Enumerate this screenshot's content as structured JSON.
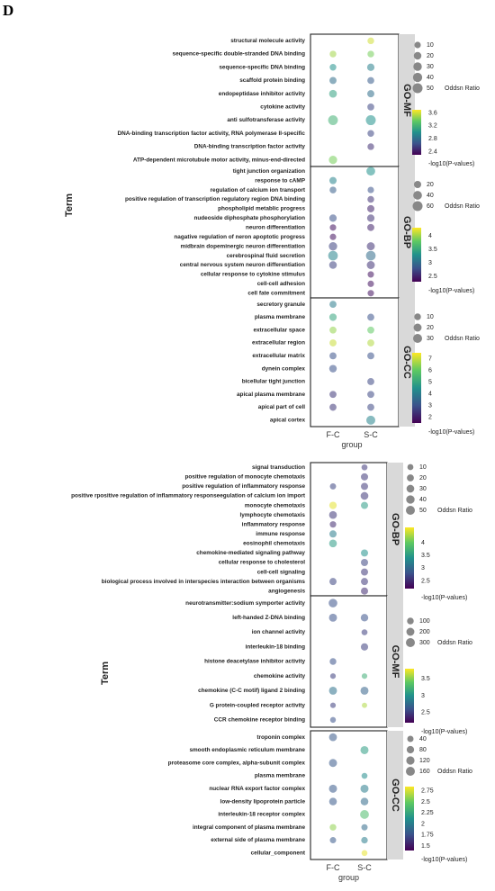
{
  "figure_letter": "D",
  "groups": [
    "F-C",
    "S-C"
  ],
  "xlabel": "group",
  "ylabel": "Term",
  "size_legend_title": "Oddsn Ratio",
  "color_legend_title": "-log10(P-values)",
  "chart_data": [
    {
      "type": "scatter",
      "panel": "GO-MF",
      "terms": [
        "structural molecule activity",
        "sequence-specific double-stranded DNA binding",
        "sequence-specific DNA binding",
        "scaffold protein binding",
        "endopeptidase inhibitor activity",
        "cytokine activity",
        "anti sulfotransferase activity",
        "DNA-binding transcription factor activity, RNA polymerase II-specific",
        "DNA-binding transcription factor activity",
        "ATP-dependent microtubule motor activity, minus-end-directed"
      ],
      "points": [
        {
          "term": 0,
          "group": 1,
          "size": 12,
          "color": 3.6
        },
        {
          "term": 1,
          "group": 0,
          "size": 12,
          "color": 3.5
        },
        {
          "term": 1,
          "group": 1,
          "size": 12,
          "color": 3.4
        },
        {
          "term": 2,
          "group": 0,
          "size": 12,
          "color": 3.0
        },
        {
          "term": 2,
          "group": 1,
          "size": 18,
          "color": 2.9
        },
        {
          "term": 3,
          "group": 0,
          "size": 15,
          "color": 2.8
        },
        {
          "term": 3,
          "group": 1,
          "size": 14,
          "color": 2.7
        },
        {
          "term": 4,
          "group": 0,
          "size": 22,
          "color": 3.1
        },
        {
          "term": 4,
          "group": 1,
          "size": 16,
          "color": 2.8
        },
        {
          "term": 5,
          "group": 1,
          "size": 14,
          "color": 2.6
        },
        {
          "term": 6,
          "group": 0,
          "size": 48,
          "color": 3.2
        },
        {
          "term": 6,
          "group": 1,
          "size": 50,
          "color": 3.0
        },
        {
          "term": 7,
          "group": 1,
          "size": 12,
          "color": 2.6
        },
        {
          "term": 8,
          "group": 1,
          "size": 12,
          "color": 2.5
        },
        {
          "term": 9,
          "group": 0,
          "size": 28,
          "color": 3.4
        }
      ],
      "size_legend": [
        10,
        20,
        30,
        40,
        50
      ],
      "color_ticks": [
        3.6,
        3.2,
        2.8,
        2.4
      ],
      "color_range": [
        2.3,
        3.7
      ]
    },
    {
      "type": "scatter",
      "panel": "GO-BP",
      "terms": [
        "tight junction organization",
        "response to cAMP",
        "regulation of calcium ion transport",
        "positive regulation of transcription regulatory region DNA binding",
        "phospholipid metablic progress",
        "nudeoside diphosphate phosphorylation",
        "neuron differentiation",
        "nagative regulation of neron apoptotic progress",
        "midbrain dopeminergic neuron differentiation",
        "cerebrospinal fluid secretion",
        "central nervous system neuron differentiation",
        "cellular response to cytokine stimulus",
        "cell-cell adhesion",
        "cell fate commitment"
      ],
      "points": [
        {
          "term": 0,
          "group": 1,
          "size": 40,
          "color": 3.3
        },
        {
          "term": 1,
          "group": 0,
          "size": 20,
          "color": 3.2
        },
        {
          "term": 2,
          "group": 0,
          "size": 15,
          "color": 2.9
        },
        {
          "term": 2,
          "group": 1,
          "size": 12,
          "color": 2.8
        },
        {
          "term": 3,
          "group": 1,
          "size": 15,
          "color": 2.6
        },
        {
          "term": 4,
          "group": 1,
          "size": 20,
          "color": 2.5
        },
        {
          "term": 5,
          "group": 0,
          "size": 22,
          "color": 2.8
        },
        {
          "term": 5,
          "group": 1,
          "size": 22,
          "color": 2.6
        },
        {
          "term": 6,
          "group": 0,
          "size": 12,
          "color": 2.4
        },
        {
          "term": 6,
          "group": 1,
          "size": 18,
          "color": 2.5
        },
        {
          "term": 7,
          "group": 0,
          "size": 12,
          "color": 2.4
        },
        {
          "term": 8,
          "group": 0,
          "size": 35,
          "color": 2.7
        },
        {
          "term": 8,
          "group": 1,
          "size": 30,
          "color": 2.6
        },
        {
          "term": 9,
          "group": 0,
          "size": 55,
          "color": 3.2
        },
        {
          "term": 9,
          "group": 1,
          "size": 55,
          "color": 3.0
        },
        {
          "term": 10,
          "group": 0,
          "size": 25,
          "color": 2.7
        },
        {
          "term": 10,
          "group": 1,
          "size": 30,
          "color": 2.6
        },
        {
          "term": 11,
          "group": 1,
          "size": 12,
          "color": 2.4
        },
        {
          "term": 12,
          "group": 1,
          "size": 12,
          "color": 2.4
        },
        {
          "term": 13,
          "group": 1,
          "size": 12,
          "color": 2.4
        }
      ],
      "size_legend": [
        20,
        40,
        60
      ],
      "color_ticks": [
        4,
        3.5,
        3,
        2.5
      ],
      "color_range": [
        2.3,
        4.3
      ]
    },
    {
      "type": "scatter",
      "panel": "GO-CC",
      "terms": [
        "secretory granule",
        "plasma membrane",
        "extracellular space",
        "extracellular region",
        "extracellular matrix",
        "dynein complex",
        "bicellular tight junction",
        "apical plasma membrane",
        "apical part of cell",
        "apical cortex"
      ],
      "points": [
        {
          "term": 0,
          "group": 0,
          "size": 12,
          "color": 4.0
        },
        {
          "term": 1,
          "group": 0,
          "size": 15,
          "color": 5.0
        },
        {
          "term": 1,
          "group": 1,
          "size": 12,
          "color": 3.0
        },
        {
          "term": 2,
          "group": 0,
          "size": 12,
          "color": 6.5
        },
        {
          "term": 2,
          "group": 1,
          "size": 12,
          "color": 6.0
        },
        {
          "term": 3,
          "group": 0,
          "size": 12,
          "color": 7.0
        },
        {
          "term": 3,
          "group": 1,
          "size": 12,
          "color": 6.8
        },
        {
          "term": 4,
          "group": 0,
          "size": 12,
          "color": 3.0
        },
        {
          "term": 4,
          "group": 1,
          "size": 12,
          "color": 3.0
        },
        {
          "term": 5,
          "group": 0,
          "size": 16,
          "color": 3.0
        },
        {
          "term": 6,
          "group": 1,
          "size": 12,
          "color": 2.8
        },
        {
          "term": 7,
          "group": 0,
          "size": 12,
          "color": 2.5
        },
        {
          "term": 7,
          "group": 1,
          "size": 12,
          "color": 2.8
        },
        {
          "term": 8,
          "group": 0,
          "size": 12,
          "color": 2.5
        },
        {
          "term": 8,
          "group": 1,
          "size": 12,
          "color": 2.8
        },
        {
          "term": 9,
          "group": 1,
          "size": 30,
          "color": 4.2
        }
      ],
      "size_legend": [
        10,
        20,
        30
      ],
      "color_ticks": [
        7,
        6,
        5,
        4,
        3,
        2
      ],
      "color_range": [
        1.5,
        7.5
      ]
    },
    {
      "type": "scatter",
      "panel": "GO-BP",
      "terms": [
        "signal transduction",
        "positive regulation of monocyte chemotaxis",
        "positive regulation of inflammatory response",
        "positive rpositive regulation of inflammatory responseegulation of calcium ion import",
        "monocyte chemotaxis",
        "lymphocyte chemotaxis",
        "inflammatory response",
        "immune response",
        "eosinophil chemotaxis",
        "chemokine-mediated signaling pathway",
        "cellular response to cholesterol",
        "cell-cell signaling",
        "biological process involved in interspecies interaction between organisms",
        "angiogenesis"
      ],
      "points": [
        {
          "term": 0,
          "group": 1,
          "size": 10,
          "color": 2.6
        },
        {
          "term": 1,
          "group": 1,
          "size": 22,
          "color": 2.6
        },
        {
          "term": 2,
          "group": 0,
          "size": 12,
          "color": 2.7
        },
        {
          "term": 2,
          "group": 1,
          "size": 22,
          "color": 2.6
        },
        {
          "term": 3,
          "group": 1,
          "size": 30,
          "color": 2.6
        },
        {
          "term": 4,
          "group": 0,
          "size": 25,
          "color": 4.5
        },
        {
          "term": 4,
          "group": 1,
          "size": 22,
          "color": 3.5
        },
        {
          "term": 5,
          "group": 0,
          "size": 30,
          "color": 2.6
        },
        {
          "term": 6,
          "group": 0,
          "size": 14,
          "color": 2.5
        },
        {
          "term": 7,
          "group": 0,
          "size": 22,
          "color": 3.2
        },
        {
          "term": 8,
          "group": 0,
          "size": 30,
          "color": 3.5
        },
        {
          "term": 9,
          "group": 1,
          "size": 22,
          "color": 3.4
        },
        {
          "term": 10,
          "group": 1,
          "size": 22,
          "color": 2.7
        },
        {
          "term": 11,
          "group": 1,
          "size": 22,
          "color": 2.6
        },
        {
          "term": 12,
          "group": 0,
          "size": 22,
          "color": 2.7
        },
        {
          "term": 12,
          "group": 1,
          "size": 22,
          "color": 2.6
        },
        {
          "term": 13,
          "group": 1,
          "size": 22,
          "color": 2.5
        }
      ],
      "size_legend": [
        10,
        20,
        30,
        40,
        50
      ],
      "color_ticks": [
        4,
        3.5,
        3,
        2.5
      ],
      "color_range": [
        2.2,
        4.6
      ]
    },
    {
      "type": "scatter",
      "panel": "GO-MF",
      "terms": [
        "neurotransmitter:sodium symporter activity",
        "left-handed Z-DNA binding",
        "ion channel activity",
        "interleukin-18 binding",
        "histone deacetylase inhibitor activity",
        "chemokine activity",
        "chemokine (C-C motif) ligand 2 binding",
        "G protein-coupled receptor activity",
        "CCR chemokine receptor binding"
      ],
      "points": [
        {
          "term": 0,
          "group": 0,
          "size": 260,
          "color": 2.6
        },
        {
          "term": 1,
          "group": 0,
          "size": 200,
          "color": 2.6
        },
        {
          "term": 1,
          "group": 1,
          "size": 160,
          "color": 2.6
        },
        {
          "term": 2,
          "group": 1,
          "size": 60,
          "color": 2.5
        },
        {
          "term": 3,
          "group": 1,
          "size": 140,
          "color": 2.5
        },
        {
          "term": 4,
          "group": 0,
          "size": 100,
          "color": 2.6
        },
        {
          "term": 5,
          "group": 0,
          "size": 40,
          "color": 2.5
        },
        {
          "term": 5,
          "group": 1,
          "size": 40,
          "color": 3.2
        },
        {
          "term": 6,
          "group": 0,
          "size": 200,
          "color": 2.8
        },
        {
          "term": 6,
          "group": 1,
          "size": 200,
          "color": 2.7
        },
        {
          "term": 7,
          "group": 0,
          "size": 40,
          "color": 2.5
        },
        {
          "term": 7,
          "group": 1,
          "size": 30,
          "color": 3.6
        },
        {
          "term": 8,
          "group": 0,
          "size": 50,
          "color": 2.6
        }
      ],
      "size_legend": [
        100,
        200,
        300
      ],
      "color_ticks": [
        3.5,
        3,
        2.5
      ],
      "color_range": [
        2.2,
        3.8
      ]
    },
    {
      "type": "scatter",
      "panel": "GO-CC",
      "terms": [
        "troponin complex",
        "smooth endoplasmic reticulum membrane",
        "proteasome core complex, alpha-subunit complex",
        "plasma membrane",
        "nuclear RNA export factor complex",
        "low-density lipoprotein particle",
        "interleukin-18 receptor complex",
        "integral component of plasma membrane",
        "external side of plasma membrane",
        "cellular_component"
      ],
      "points": [
        {
          "term": 0,
          "group": 0,
          "size": 100,
          "color": 1.8
        },
        {
          "term": 1,
          "group": 1,
          "size": 110,
          "color": 2.2
        },
        {
          "term": 2,
          "group": 0,
          "size": 110,
          "color": 1.8
        },
        {
          "term": 3,
          "group": 1,
          "size": 30,
          "color": 2.1
        },
        {
          "term": 4,
          "group": 0,
          "size": 110,
          "color": 1.8
        },
        {
          "term": 4,
          "group": 1,
          "size": 110,
          "color": 2.0
        },
        {
          "term": 5,
          "group": 0,
          "size": 90,
          "color": 1.8
        },
        {
          "term": 5,
          "group": 1,
          "size": 90,
          "color": 1.9
        },
        {
          "term": 6,
          "group": 1,
          "size": 150,
          "color": 2.4
        },
        {
          "term": 7,
          "group": 0,
          "size": 50,
          "color": 2.6
        },
        {
          "term": 7,
          "group": 1,
          "size": 40,
          "color": 1.9
        },
        {
          "term": 8,
          "group": 0,
          "size": 40,
          "color": 1.8
        },
        {
          "term": 8,
          "group": 1,
          "size": 50,
          "color": 2.0
        },
        {
          "term": 9,
          "group": 1,
          "size": 30,
          "color": 2.8
        }
      ],
      "size_legend": [
        40,
        80,
        120,
        160
      ],
      "color_ticks": [
        2.75,
        2.5,
        2.25,
        2,
        1.75,
        1.5
      ],
      "color_range": [
        1.4,
        2.85
      ]
    }
  ]
}
